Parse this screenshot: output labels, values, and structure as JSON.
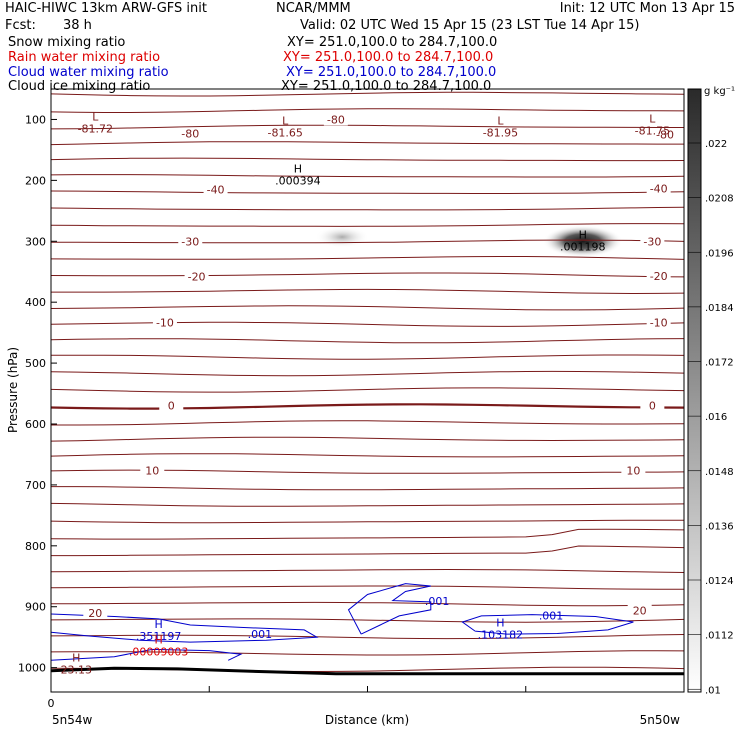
{
  "header": {
    "title_left": "HAIC-HIWC 13km ARW-GFS init",
    "org": "NCAR/MMM",
    "init": "Init: 12 UTC Mon 13 Apr 15",
    "fcst_label": "Fcst:",
    "fcst_value": "38 h",
    "valid": "Valid: 02 UTC Wed 15 Apr 15 (23 LST Tue 14 Apr 15)",
    "fields": [
      {
        "name": "Snow mixing ratio",
        "xy": "XY= 251.0,100.0 to 284.7,100.0",
        "color": "#000000"
      },
      {
        "name": "Rain water mixing ratio",
        "xy": "XY= 251.0,100.0 to 284.7,100.0",
        "color": "#dd0000"
      },
      {
        "name": "Cloud water mixing ratio",
        "xy": "XY= 251.0,100.0 to 284.7,100.0",
        "color": "#0000cc"
      },
      {
        "name": "Cloud ice mixing ratio",
        "xy": "XY= 251.0,100.0 to 284.7,100.0",
        "color": "#000000"
      }
    ]
  },
  "chart_data": {
    "type": "heatmap",
    "xlabel": "Distance (km)",
    "ylabel": "Pressure (hPa)",
    "x_tick_labels": [
      "0"
    ],
    "x_end_labels": [
      "5n54w",
      "5n50w"
    ],
    "y_ticks": [
      100,
      200,
      300,
      400,
      500,
      600,
      700,
      800,
      900,
      1000
    ],
    "ylim": [
      50,
      1040
    ],
    "colorbar": {
      "unit": "g kg⁻¹",
      "ticks": [
        ".022",
        ".0208",
        ".0196",
        ".0184",
        ".0172",
        ".016",
        ".0148",
        ".0136",
        ".0124",
        ".0112",
        ".01"
      ]
    },
    "temperature_labels": [
      {
        "text": "-80",
        "x": 0.45,
        "p": 100
      },
      {
        "text": "-80",
        "x": 0.22,
        "p": 123
      },
      {
        "text": "-80",
        "x": 0.97,
        "p": 125
      },
      {
        "text": "-40",
        "x": 0.26,
        "p": 215
      },
      {
        "text": "-40",
        "x": 0.96,
        "p": 213
      },
      {
        "text": "-30",
        "x": 0.22,
        "p": 300
      },
      {
        "text": "-30",
        "x": 0.95,
        "p": 300
      },
      {
        "text": "-20",
        "x": 0.23,
        "p": 358
      },
      {
        "text": "-20",
        "x": 0.96,
        "p": 357
      },
      {
        "text": "-10",
        "x": 0.18,
        "p": 433
      },
      {
        "text": "-10",
        "x": 0.96,
        "p": 433
      },
      {
        "text": "0",
        "x": 0.19,
        "p": 570
      },
      {
        "text": "0",
        "x": 0.95,
        "p": 570
      },
      {
        "text": "10",
        "x": 0.16,
        "p": 676
      },
      {
        "text": "10",
        "x": 0.92,
        "p": 676
      },
      {
        "text": "20",
        "x": 0.07,
        "p": 910
      },
      {
        "text": "20",
        "x": 0.93,
        "p": 906
      }
    ],
    "extrema": [
      {
        "mark": "L",
        "value": "-81.72",
        "x": 0.07,
        "p": 107,
        "color": "#7a1a1a"
      },
      {
        "mark": "L",
        "value": "-81.65",
        "x": 0.37,
        "p": 113,
        "color": "#7a1a1a"
      },
      {
        "mark": "L",
        "value": "-81.95",
        "x": 0.71,
        "p": 113,
        "color": "#7a1a1a"
      },
      {
        "mark": "L",
        "value": "-81.75",
        "x": 0.95,
        "p": 110,
        "color": "#7a1a1a"
      },
      {
        "mark": "H",
        "value": ".000394",
        "x": 0.39,
        "p": 192,
        "color": "#000000"
      },
      {
        "mark": "H",
        "value": ".001198",
        "x": 0.84,
        "p": 300,
        "color": "#000000"
      },
      {
        "mark": "H",
        "value": ".351197",
        "x": 0.17,
        "p": 940,
        "color": "#0000cc"
      },
      {
        "mark": "H",
        "value": ".00009003",
        "x": 0.17,
        "p": 965,
        "color": "#dd0000"
      },
      {
        "mark": "H",
        "value": "23.13",
        "x": 0.04,
        "p": 995,
        "color": "#7a1a1a"
      },
      {
        "mark": "H",
        "value": ".103182",
        "x": 0.71,
        "p": 937,
        "color": "#0000cc"
      }
    ],
    "cloud_water_labels": [
      {
        "text": ".001",
        "x": 0.33,
        "p": 945
      },
      {
        "text": ".001",
        "x": 0.61,
        "p": 891
      },
      {
        "text": ".001",
        "x": 0.79,
        "p": 914
      }
    ],
    "snow_maxima": [
      {
        "x": 0.46,
        "p": 293,
        "intensity": 0.35
      },
      {
        "x": 0.84,
        "p": 300,
        "intensity": 1.0
      }
    ]
  }
}
